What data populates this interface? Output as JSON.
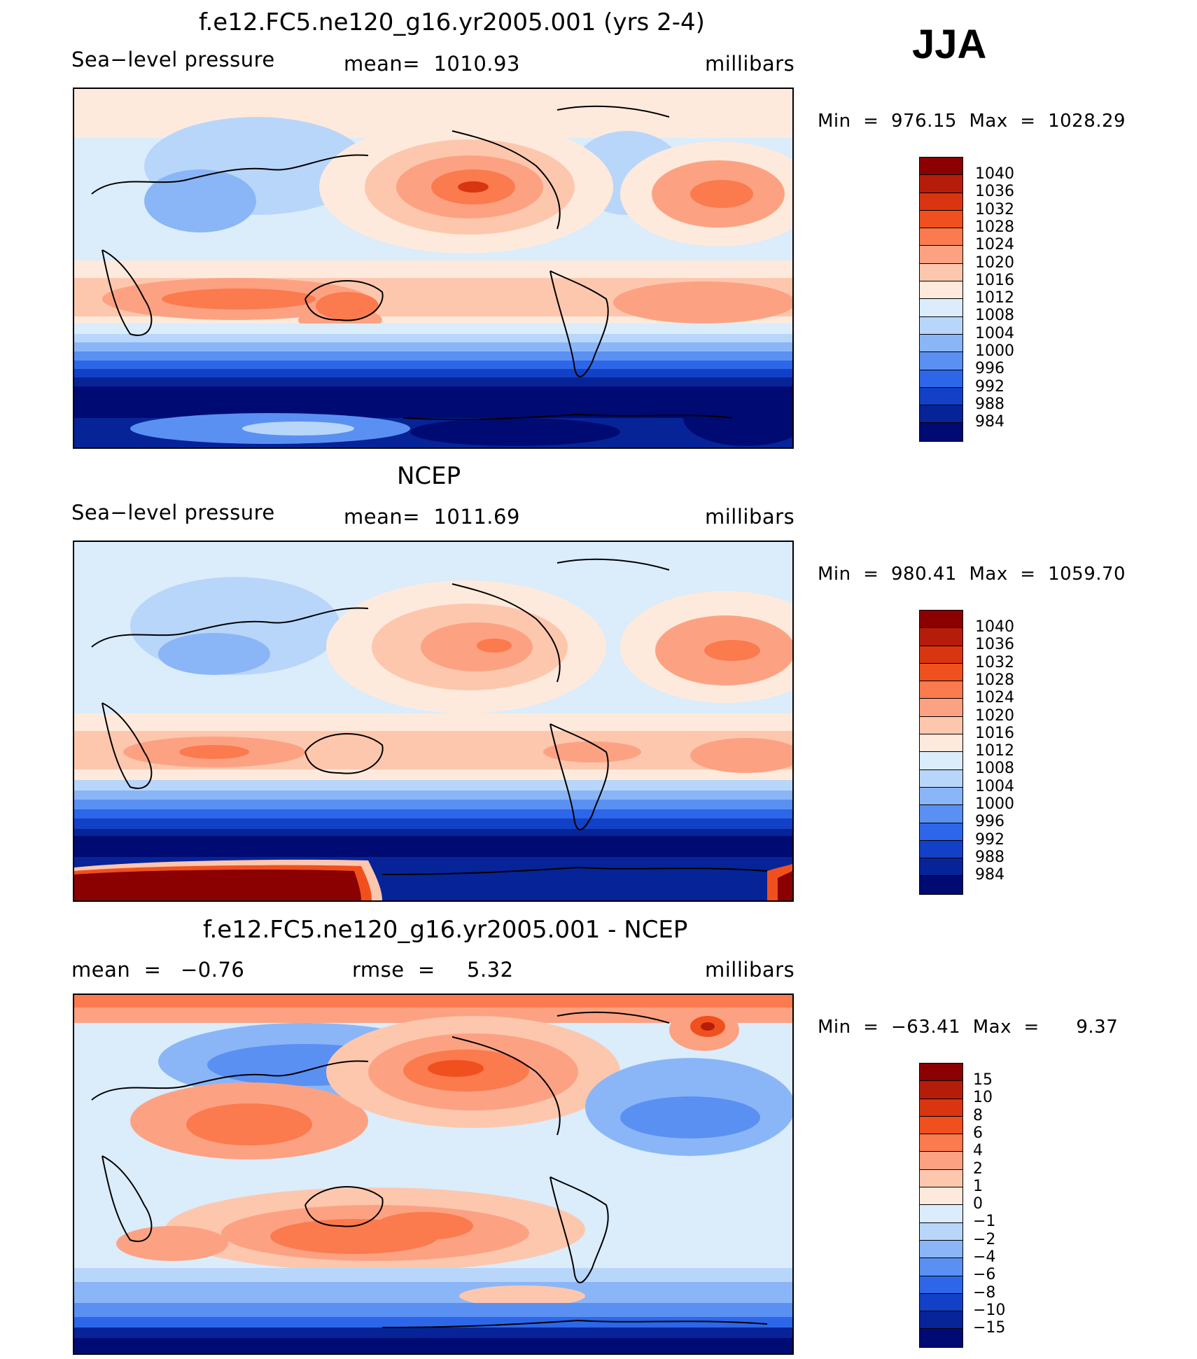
{
  "season": "JJA",
  "panels": [
    {
      "title": "f.e12.FC5.ne120_g16.yr2005.001 (yrs 2-4)",
      "variable": "Sea−level pressure",
      "stat": "mean=  1010.93",
      "units": "millibars",
      "minmax": "Min  =  976.15  Max  =  1028.29"
    },
    {
      "title": "NCEP",
      "variable": "Sea−level pressure",
      "stat": "mean=  1011.69",
      "units": "millibars",
      "minmax": "Min  =  980.41  Max  =  1059.70"
    },
    {
      "title": "f.e12.FC5.ne120_g16.yr2005.001 - NCEP",
      "variable": "mean  =",
      "stat": "−0.76",
      "stat2": "rmse  =",
      "stat3": "5.32",
      "units": "millibars",
      "minmax": "Min  =  −63.41  Max  =      9.37"
    }
  ],
  "colorbar_slp": {
    "labels": [
      "1040",
      "1036",
      "1032",
      "1028",
      "1024",
      "1020",
      "1016",
      "1012",
      "1008",
      "1004",
      "1000",
      "996",
      "992",
      "988",
      "984"
    ],
    "colors": [
      "#8b0000",
      "#b51d0a",
      "#d83510",
      "#f0501e",
      "#fb7a4e",
      "#fca282",
      "#fdc7ae",
      "#feeadc",
      "#dbecfb",
      "#b8d6fa",
      "#8ab6f7",
      "#5a90f2",
      "#2d66e8",
      "#1240c6",
      "#062498",
      "#000a73"
    ]
  },
  "colorbar_diff": {
    "labels": [
      "15",
      "10",
      "8",
      "6",
      "4",
      "2",
      "1",
      "0",
      "−1",
      "−2",
      "−4",
      "−6",
      "−8",
      "−10",
      "−15"
    ],
    "colors": [
      "#8b0000",
      "#b51d0a",
      "#d83510",
      "#f0501e",
      "#fb7a4e",
      "#fca282",
      "#fdc7ae",
      "#feeadc",
      "#dbecfb",
      "#b8d6fa",
      "#8ab6f7",
      "#5a90f2",
      "#2d66e8",
      "#1240c6",
      "#062498",
      "#000a73"
    ]
  }
}
